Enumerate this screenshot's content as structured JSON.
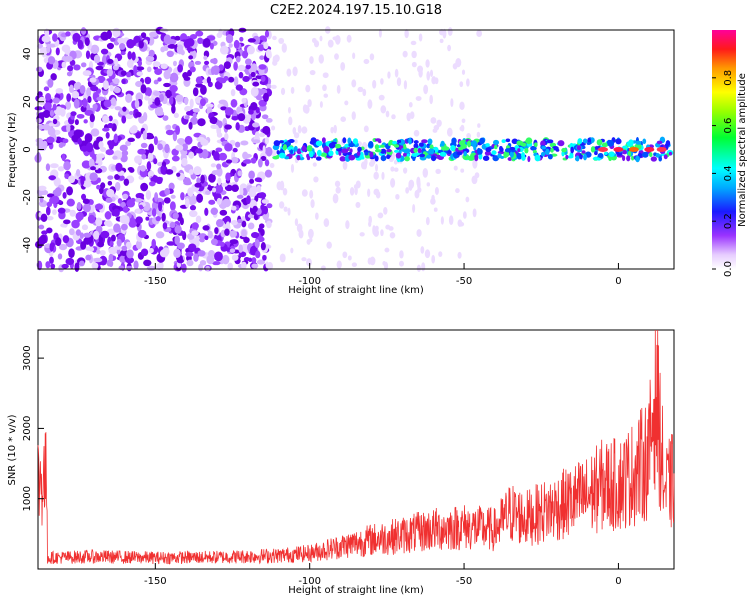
{
  "title": "C2E2.2024.197.15.10.G18",
  "chart_data": [
    {
      "type": "heatmap",
      "xlabel": "Height of straight line (km)",
      "ylabel": "Frequency (Hz)",
      "xlim": [
        -188,
        18
      ],
      "ylim": [
        -50,
        50
      ],
      "xticks": [
        -150,
        -100,
        -50,
        0
      ],
      "yticks": [
        -40,
        -20,
        0,
        20,
        40
      ],
      "colorbar": {
        "label": "Normalized spectral amplitude",
        "range": [
          0,
          1
        ],
        "ticks": [
          0.0,
          0.2,
          0.4,
          0.6,
          0.8
        ]
      },
      "description_values": {
        "signal_band_center_hz": 0,
        "signal_start_km": -110,
        "noise_region_end_km": -115
      }
    },
    {
      "type": "line",
      "xlabel": "Height of straight line (km)",
      "ylabel": "SNR (10 * v/v)",
      "xlim": [
        -188,
        18
      ],
      "ylim": [
        0,
        3400
      ],
      "xticks": [
        -150,
        -100,
        -50,
        0
      ],
      "yticks": [
        1000,
        2000,
        3000
      ],
      "color": "#f03030",
      "series": [
        {
          "x": [
            -185,
            -170,
            -150,
            -130,
            -110,
            -100,
            -90,
            -80,
            -70,
            -60,
            -50,
            -40,
            -35,
            -30,
            -20,
            -10,
            -5,
            0,
            5,
            10,
            12,
            15,
            18
          ],
          "y": [
            200,
            220,
            200,
            210,
            240,
            280,
            400,
            520,
            600,
            700,
            750,
            700,
            1000,
            900,
            1100,
            1300,
            1500,
            1500,
            1700,
            2000,
            3300,
            1400,
            1600
          ]
        }
      ]
    }
  ]
}
